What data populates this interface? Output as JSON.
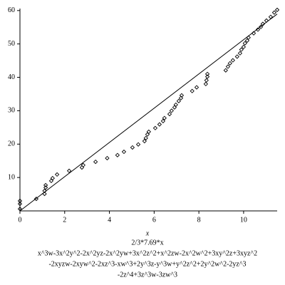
{
  "chart_data": {
    "type": "scatter",
    "x_label": "x",
    "captions": [
      "2/3*7.69*x",
      "x^3w-3x^2y^2-2x^2yz-2x^2yw+3x^2z^2+x^2zw-2x^2w^2+3xy^2z+3xyz^2",
      "-2xyzw-2xyw^2-2xz^3-xw^3+2y^3z-y^3w+y^2z^2+2y^2w^2-2yz^3",
      "-2z^4+3z^3w-3zw^3"
    ],
    "xlim": [
      0,
      11.5
    ],
    "ylim": [
      0,
      60.6
    ],
    "xticks": [
      0,
      2,
      4,
      6,
      8,
      10
    ],
    "yticks": [
      10,
      20,
      30,
      40,
      50,
      60
    ],
    "line": {
      "name": "2/3*7.69*x",
      "color": "#000000",
      "x": [
        0,
        11.5
      ],
      "values": [
        0,
        58.96
      ]
    },
    "points": {
      "color": "#000000",
      "x": [
        0,
        0,
        0,
        0.73,
        1.1,
        1.1,
        1.15,
        1.15,
        1.4,
        1.46,
        1.66,
        2.2,
        2.77,
        2.83,
        3.38,
        3.9,
        4.36,
        4.65,
        5.03,
        5.29,
        5.57,
        5.63,
        5.7,
        5.76,
        6.05,
        6.24,
        6.4,
        6.46,
        6.69,
        6.78,
        6.91,
        6.97,
        7.1,
        7.2,
        7.23,
        7.7,
        7.9,
        8.31,
        8.34,
        8.38,
        8.38,
        9.2,
        9.3,
        9.39,
        9.52,
        9.71,
        9.84,
        9.9,
        10,
        10.06,
        10.16,
        10.22,
        10.45,
        10.64,
        10.77,
        10.86,
        11.02,
        11.21,
        11.37,
        11.5
      ],
      "values": [
        0.6,
        2.1,
        3.0,
        3.6,
        5.1,
        6.0,
        7.0,
        7.7,
        9.0,
        9.8,
        10.9,
        12,
        13,
        13.7,
        14.7,
        15.8,
        16.7,
        17.7,
        19,
        19.9,
        20.9,
        21.8,
        22.9,
        23.7,
        24.8,
        25.9,
        26.9,
        27.8,
        29,
        30,
        31,
        31.8,
        32.9,
        33.8,
        34.6,
        35.9,
        37,
        38,
        39.1,
        40.2,
        41,
        42.1,
        43.2,
        44.2,
        45.1,
        46.2,
        47.2,
        48.3,
        49.1,
        50.2,
        51,
        51.9,
        53.2,
        54.3,
        55.1,
        56,
        57,
        58.1,
        59.4,
        60.2
      ]
    }
  }
}
